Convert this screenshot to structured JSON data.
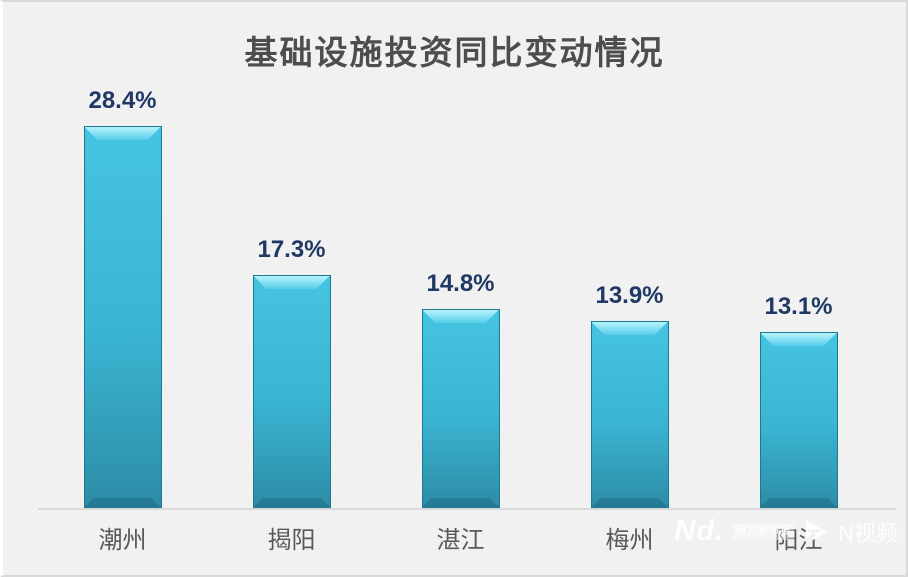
{
  "page": {
    "background": "#f1f1f1",
    "frame_border_color": "#d9d9d9"
  },
  "chart_data": {
    "type": "bar",
    "title": "基础设施投资同比变动情况",
    "categories": [
      "潮州",
      "揭阳",
      "湛江",
      "梅州",
      "阳江"
    ],
    "values": [
      28.4,
      17.3,
      14.8,
      13.9,
      13.1
    ],
    "data_labels": [
      "28.4%",
      "17.3%",
      "14.8%",
      "13.9%",
      "13.1%"
    ],
    "unit": "%",
    "xlabel": "",
    "ylabel": "",
    "ylim": [
      0,
      30
    ],
    "grid": false,
    "legend": "none",
    "y_axis_visible": false,
    "colors": {
      "bar_top": "#45c4e1",
      "bar_bottom": "#2d8ca6",
      "bar_bevel_highlight": "#aeeffa",
      "bar_outline": "#1a7a94",
      "data_label": "#1f3864",
      "category_label": "#595959",
      "title": "#4d4d4d",
      "axis_line": "#d9d9d9"
    }
  },
  "watermark": {
    "logo_text": "Nd.",
    "brand_box_text": "南方都市报",
    "video_text": "N视频",
    "icon": "play-icon",
    "color": "#ffffff"
  }
}
